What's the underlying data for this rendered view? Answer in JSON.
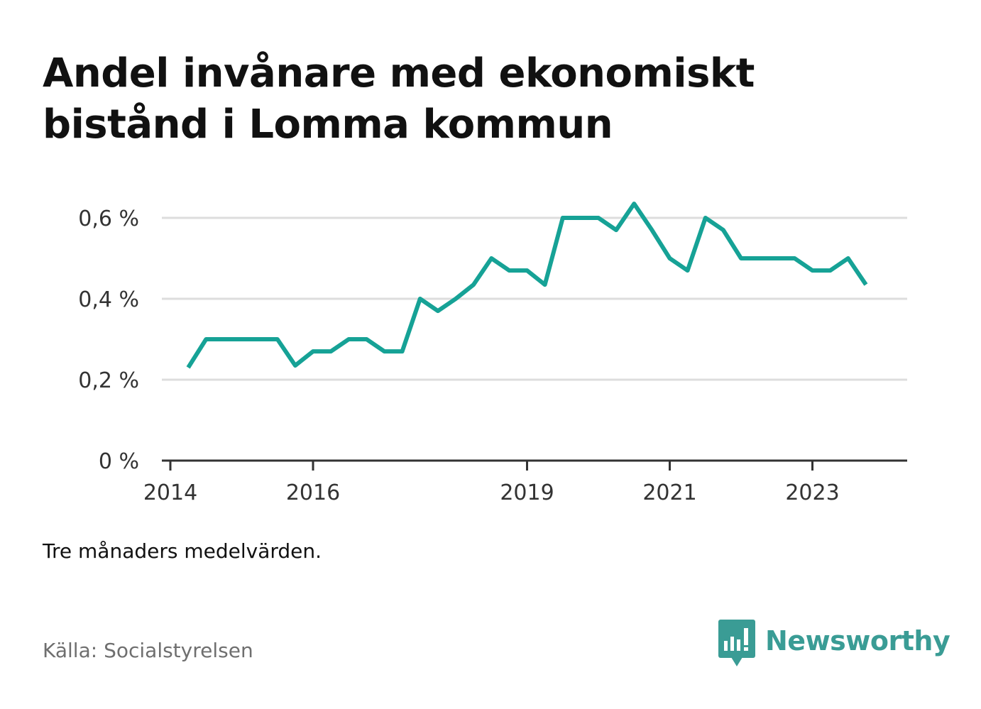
{
  "title": "Andel invånare med ekonomiskt bistånd i Lomma kommun",
  "note": "Tre månaders medelvärden.",
  "source": "Källa: Socialstyrelsen",
  "brand": {
    "name": "Newsworthy",
    "icon": "newsworthy-logo-icon",
    "color": "#3a9c95"
  },
  "chart_data": {
    "type": "line",
    "title": "Andel invånare med ekonomiskt bistånd i Lomma kommun",
    "xlabel": "",
    "ylabel": "",
    "x_ticks": [
      "2014",
      "2016",
      "2019",
      "2021",
      "2023"
    ],
    "y_ticks": [
      "0 %",
      "0,2 %",
      "0,4 %",
      "0,6 %"
    ],
    "ylim": [
      0,
      0.7
    ],
    "grid": true,
    "legend": "none",
    "line_color": "#16a296",
    "series": [
      {
        "x": [
          "2014-04",
          "2014-07",
          "2014-10",
          "2015-01",
          "2015-04",
          "2015-07",
          "2015-10",
          "2016-01",
          "2016-04",
          "2016-07",
          "2016-10",
          "2017-01",
          "2017-04",
          "2017-07",
          "2017-10",
          "2018-01",
          "2018-04",
          "2018-07",
          "2018-10",
          "2019-01",
          "2019-04",
          "2019-07",
          "2019-10",
          "2020-01",
          "2020-04",
          "2020-07",
          "2020-10",
          "2021-01",
          "2021-04",
          "2021-07",
          "2021-10",
          "2022-01",
          "2022-04",
          "2022-07",
          "2022-10",
          "2023-01",
          "2023-04",
          "2023-07",
          "2023-10"
        ],
        "values": [
          0.23,
          0.3,
          0.3,
          0.3,
          0.3,
          0.3,
          0.235,
          0.27,
          0.27,
          0.3,
          0.3,
          0.27,
          0.27,
          0.4,
          0.37,
          0.4,
          0.435,
          0.5,
          0.47,
          0.47,
          0.435,
          0.6,
          0.6,
          0.6,
          0.57,
          0.635,
          0.57,
          0.5,
          0.47,
          0.6,
          0.57,
          0.5,
          0.5,
          0.5,
          0.5,
          0.47,
          0.47,
          0.5,
          0.435
        ]
      }
    ]
  }
}
